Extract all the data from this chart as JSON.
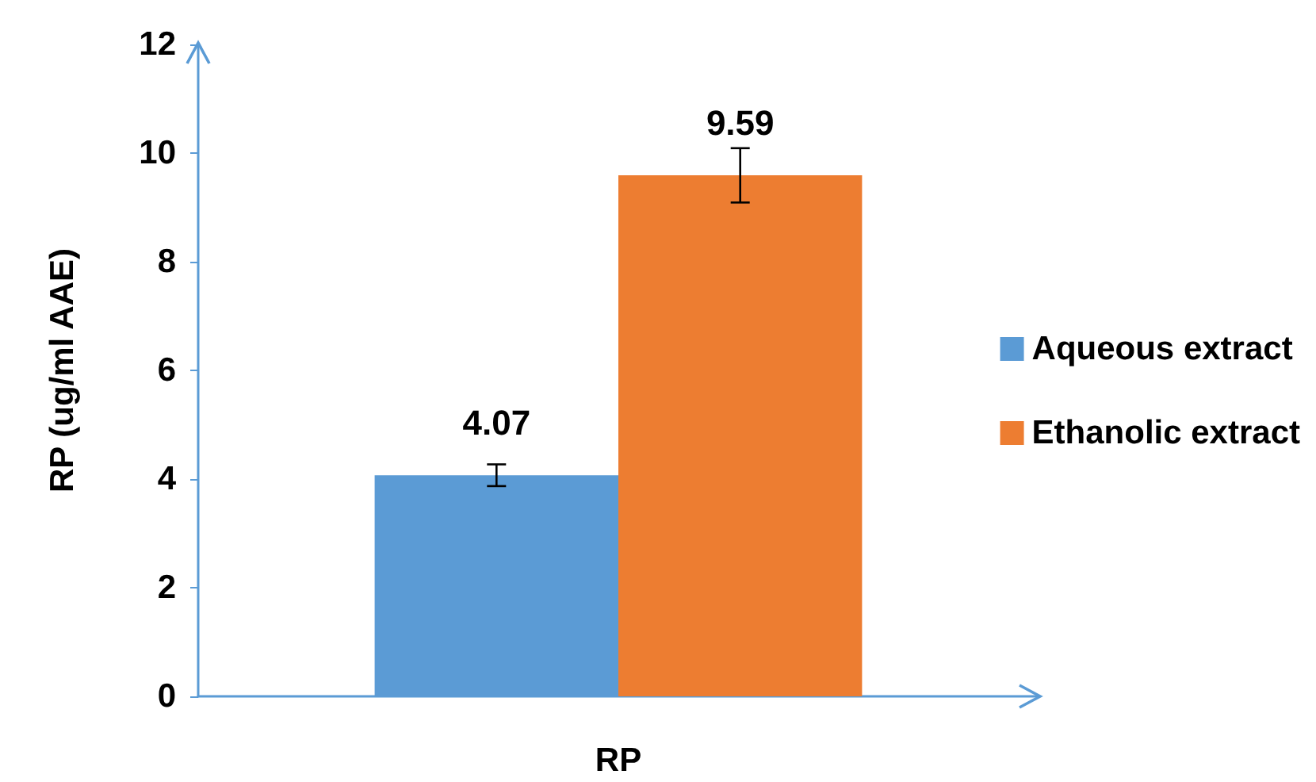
{
  "chart_data": {
    "type": "bar",
    "ylabel": "RP (ug/ml AAE)",
    "categories": [
      "RP"
    ],
    "series": [
      {
        "name": "Aqueous extract",
        "color": "#5b9bd5",
        "values": [
          4.07
        ],
        "errors": [
          0.2
        ]
      },
      {
        "name": "Ethanolic extract",
        "color": "#ed7d31",
        "values": [
          9.59
        ],
        "errors": [
          0.5
        ]
      }
    ],
    "ylim": [
      0,
      12
    ],
    "yticks": [
      0,
      2,
      4,
      6,
      8,
      10,
      12
    ],
    "grid": false,
    "legend": "right",
    "data_labels": true
  }
}
